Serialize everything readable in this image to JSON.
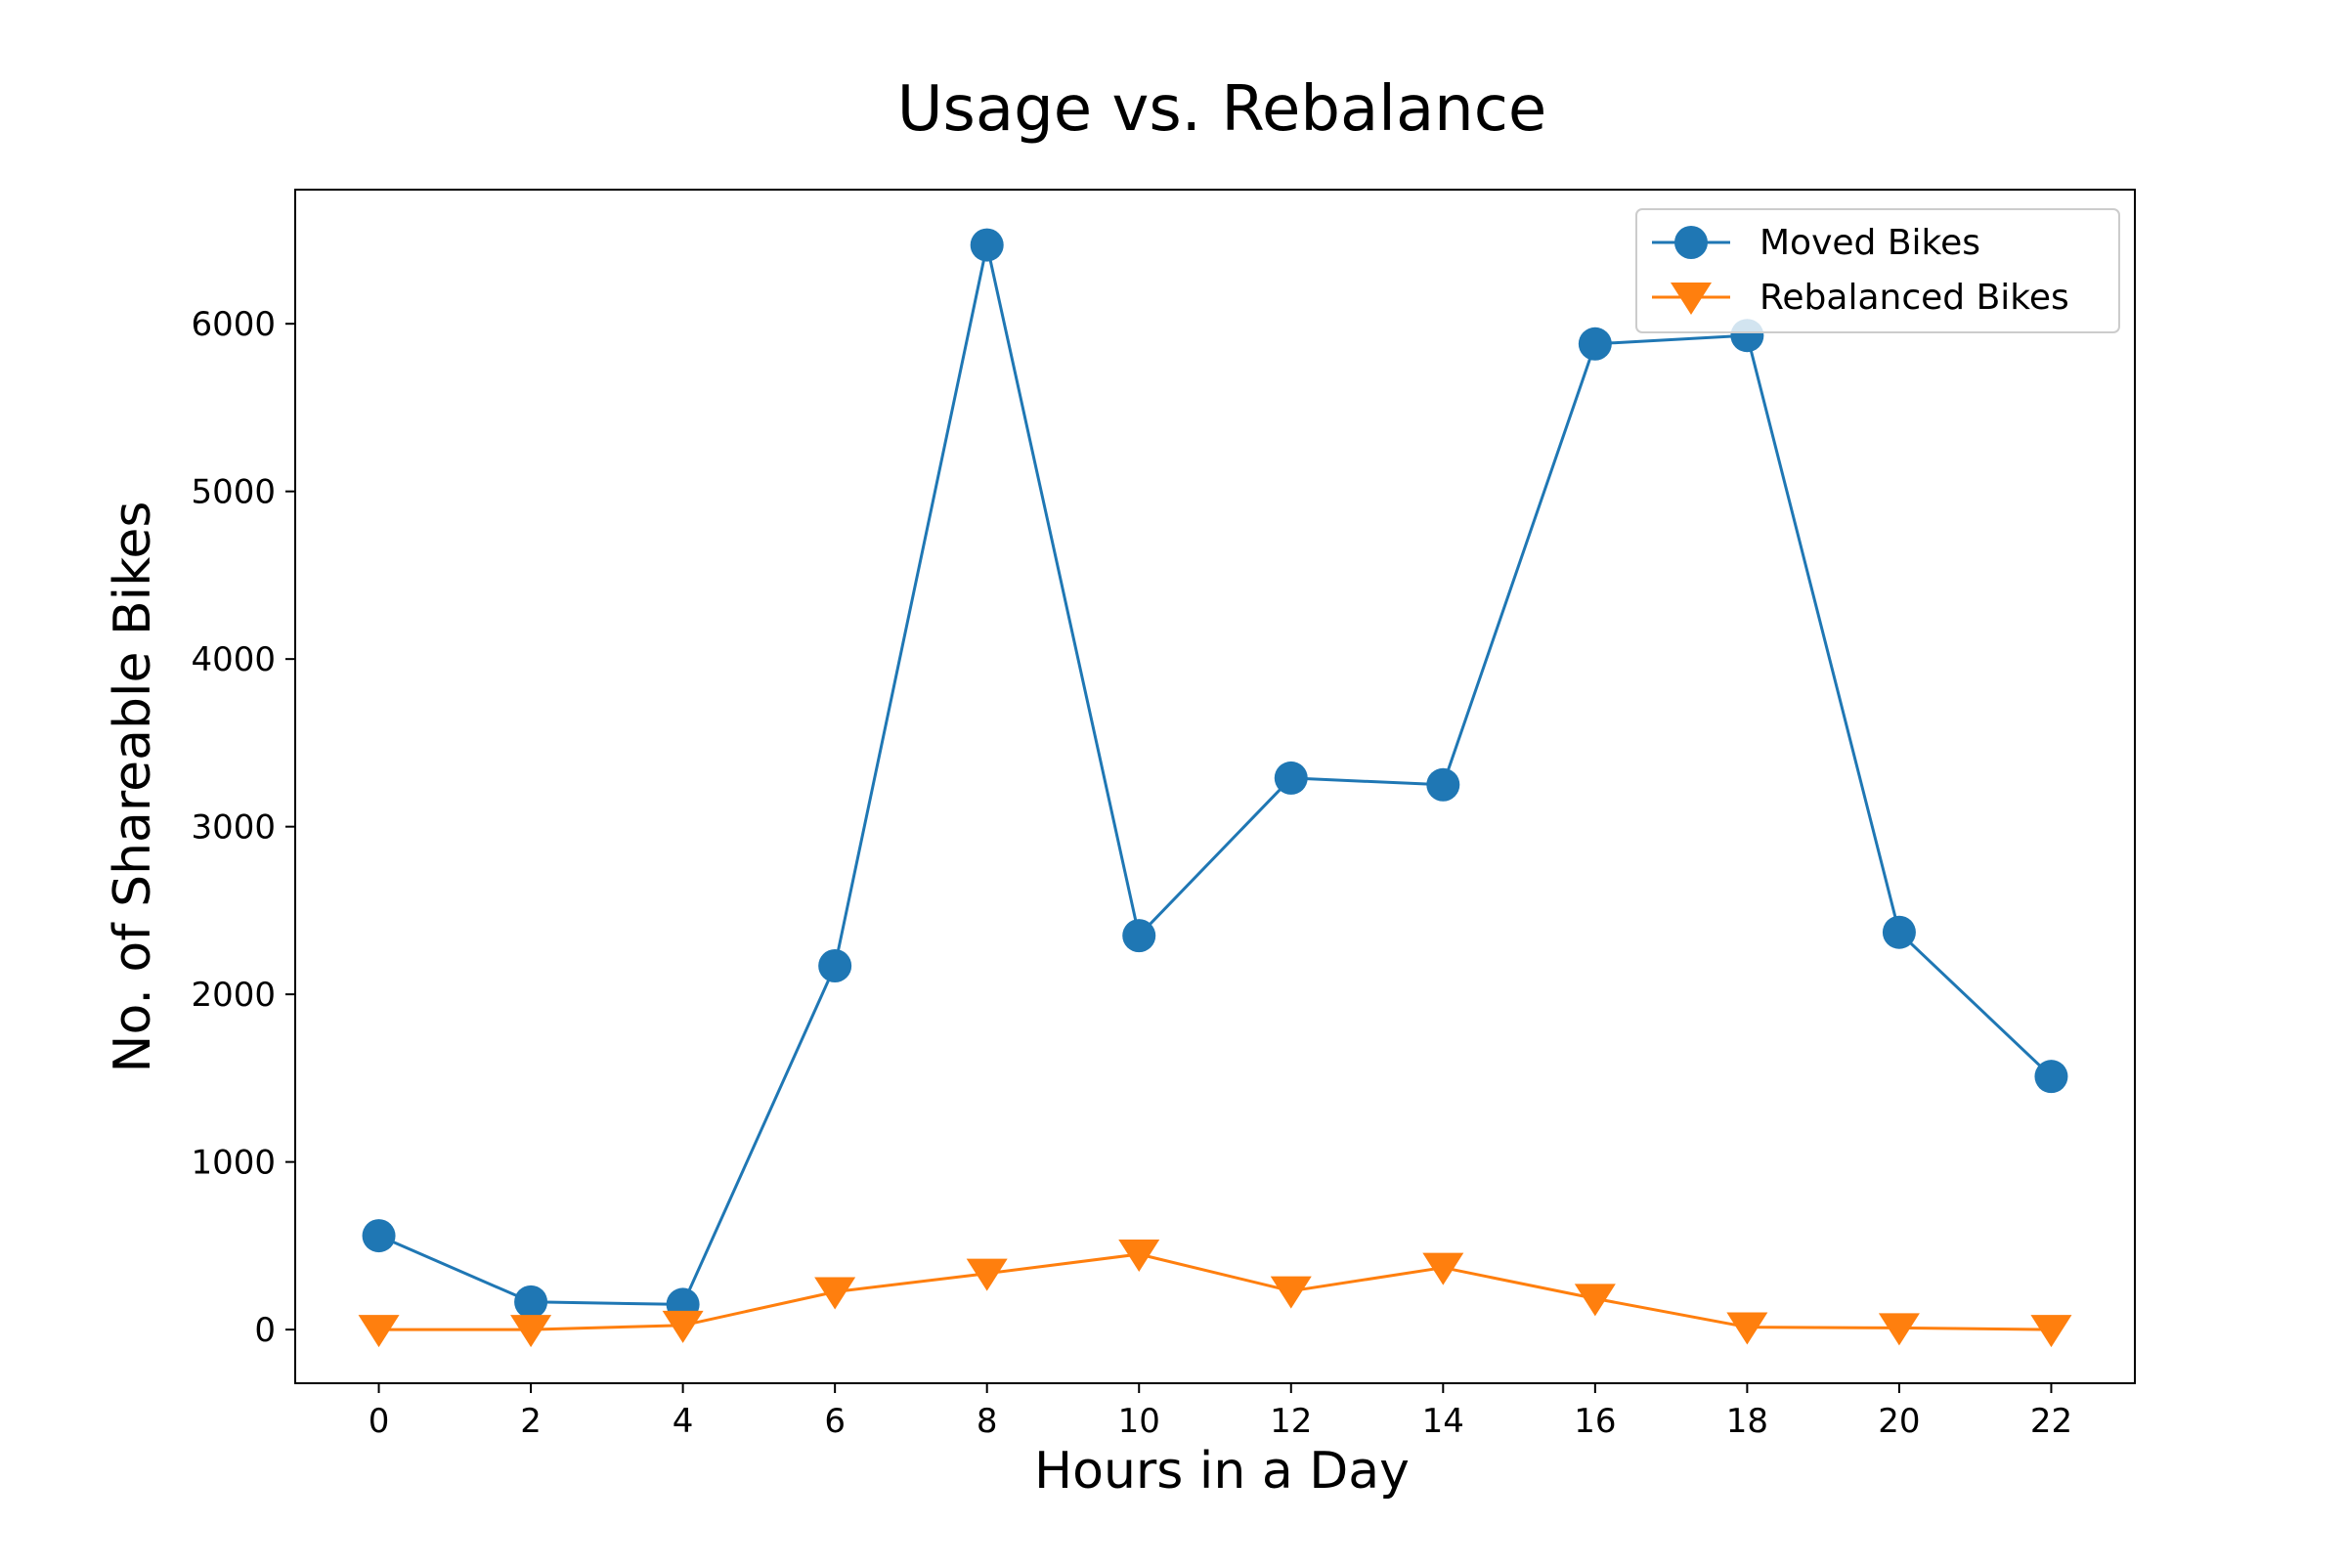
{
  "chart_data": {
    "type": "line",
    "title": "Usage vs. Rebalance",
    "xlabel": "Hours in a Day",
    "ylabel": "No. of Shareable Bikes",
    "x": [
      0,
      2,
      4,
      6,
      8,
      10,
      12,
      14,
      16,
      18,
      20,
      22
    ],
    "xticks": [
      "0",
      "2",
      "4",
      "6",
      "8",
      "10",
      "12",
      "14",
      "16",
      "18",
      "20",
      "22"
    ],
    "yticks": [
      "0",
      "1000",
      "2000",
      "3000",
      "4000",
      "5000",
      "6000"
    ],
    "xlim": [
      -1.1,
      23.1
    ],
    "ylim": [
      -320,
      6800
    ],
    "grid": false,
    "legend_position": "top-right",
    "series": [
      {
        "name": "Moved Bikes",
        "marker": "circle",
        "color": "#1f77b4",
        "values": [
          560,
          165,
          150,
          2170,
          6470,
          2350,
          3290,
          3250,
          5880,
          5930,
          2370,
          1510
        ]
      },
      {
        "name": "Rebalanced Bikes",
        "marker": "triangle-down",
        "color": "#ff7f0e",
        "values": [
          0,
          0,
          25,
          225,
          335,
          450,
          230,
          370,
          185,
          15,
          10,
          0
        ]
      }
    ]
  }
}
